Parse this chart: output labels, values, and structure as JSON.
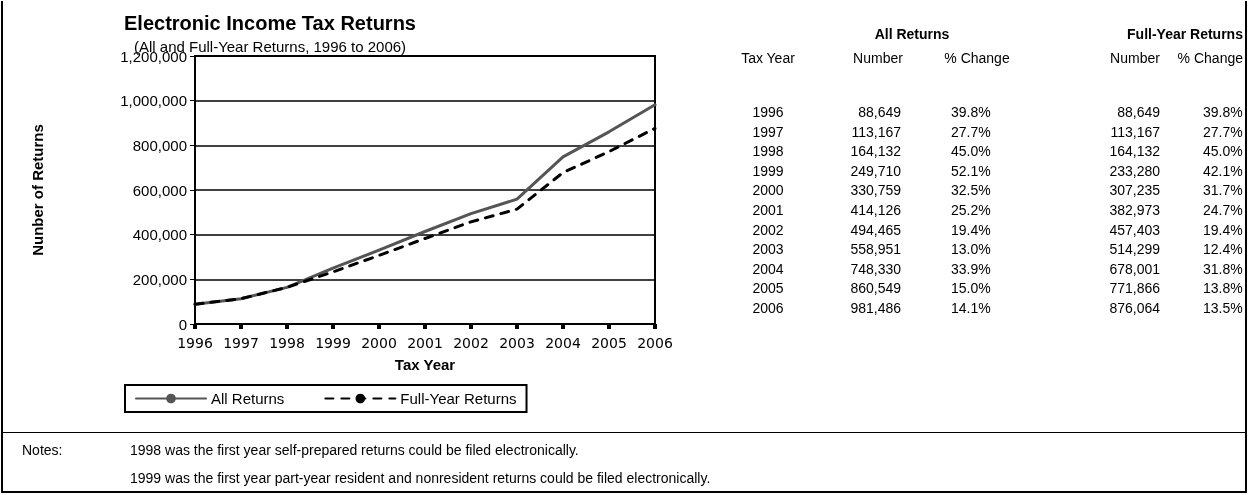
{
  "chart_data": {
    "type": "line",
    "title": "Electronic Income Tax Returns",
    "subtitle": "(All and Full-Year Returns, 1996 to 2006)",
    "xlabel": "Tax Year",
    "ylabel": "Nunber of Returns",
    "categories": [
      "1996",
      "1997",
      "1998",
      "1999",
      "2000",
      "2001",
      "2002",
      "2003",
      "2004",
      "2005",
      "2006"
    ],
    "series": [
      {
        "name": "All Returns",
        "color": "#555555",
        "line_style": "solid",
        "values": [
          88649,
          113167,
          164132,
          249710,
          330759,
          414126,
          494465,
          558951,
          748330,
          860549,
          981486
        ]
      },
      {
        "name": "Full-Year Returns",
        "color": "#000000",
        "line_style": "dashed",
        "values": [
          88649,
          113167,
          164132,
          233280,
          307235,
          382973,
          457403,
          514299,
          678001,
          771866,
          876064
        ]
      }
    ],
    "ylim": [
      0,
      1200000
    ],
    "yticks": [
      {
        "value": 0,
        "label": "0"
      },
      {
        "value": 200000,
        "label": "200,000"
      },
      {
        "value": 400000,
        "label": "400,000"
      },
      {
        "value": 600000,
        "label": "600,000"
      },
      {
        "value": 800000,
        "label": "800,000"
      },
      {
        "value": 1000000,
        "label": "1,000,000"
      },
      {
        "value": 1200000,
        "label": "1,200,000"
      }
    ],
    "grid": "y",
    "legend": "bottom",
    "marker": "none",
    "annotations": [
      "All Returns",
      "Full-Year Returns",
      "Tax Year",
      "Number",
      "% Change",
      "Number",
      "% Change",
      "88,649",
      "39.8%",
      "88,649",
      "39.8%",
      "113,167",
      "27.7%",
      "113,167",
      "27.7%",
      "164,132",
      "45.0%",
      "164,132",
      "45.0%",
      "249,710",
      "52.1%",
      "233,280",
      "42.1%",
      "330,759",
      "32.5%",
      "307,235",
      "31.7%",
      "414,126",
      "25.2%",
      "382,973",
      "24.7%",
      "494,465",
      "19.4%",
      "457,403",
      "19.4%",
      "558,951",
      "13.0%",
      "514,299",
      "12.4%",
      "748,330",
      "33.9%",
      "678,001",
      "31.8%",
      "860,549",
      "15.0%",
      "771,866",
      "13.8%",
      "981,486",
      "14.1%",
      "876,064",
      "13.5%",
      "Notes:",
      "1998 was the first year self-prepared returns could be filed electronically.",
      "1999 was the first year part-year resident and nonresident returns could be filed electronically."
    ]
  }
}
